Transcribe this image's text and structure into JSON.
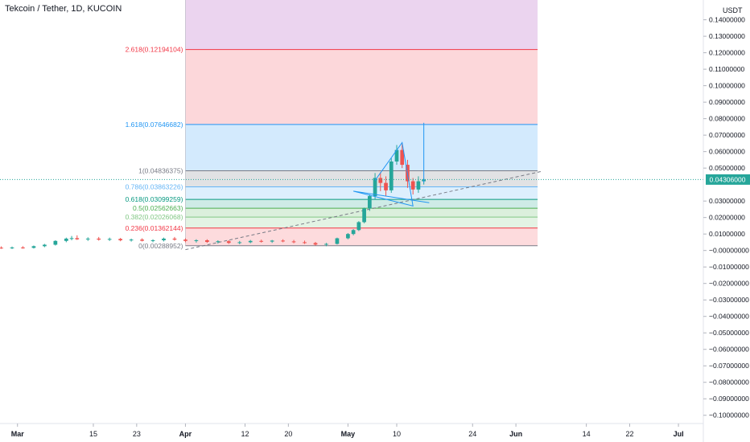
{
  "header": {
    "title": "Tekcoin / Tether, 1D, KUCOIN",
    "currency": "USDT"
  },
  "price_badge": "0.04306000",
  "colors": {
    "up": "#26a69a",
    "down": "#ef5350",
    "pattern": "#2196f3",
    "trend": "#787b86"
  },
  "chart_data": {
    "type": "candlestick",
    "title": "Tekcoin / Tether, 1D, KUCOIN",
    "ylabel": "USDT",
    "ylim": [
      -0.105,
      0.152
    ],
    "xlim": [
      "2021-02-28",
      "2021-07-05"
    ],
    "x_ticks": [
      {
        "date": "2021-03-01",
        "label": "Mar",
        "bold": true
      },
      {
        "date": "2021-03-15",
        "label": "15",
        "bold": false
      },
      {
        "date": "2021-03-23",
        "label": "23",
        "bold": false
      },
      {
        "date": "2021-04-01",
        "label": "Apr",
        "bold": true
      },
      {
        "date": "2021-04-12",
        "label": "12",
        "bold": false
      },
      {
        "date": "2021-04-20",
        "label": "20",
        "bold": false
      },
      {
        "date": "2021-05-01",
        "label": "May",
        "bold": true
      },
      {
        "date": "2021-05-10",
        "label": "10",
        "bold": false
      },
      {
        "date": "2021-05-24",
        "label": "24",
        "bold": false
      },
      {
        "date": "2021-06-01",
        "label": "Jun",
        "bold": true
      },
      {
        "date": "2021-06-14",
        "label": "14",
        "bold": false
      },
      {
        "date": "2021-06-22",
        "label": "22",
        "bold": false
      },
      {
        "date": "2021-07-01",
        "label": "Jul",
        "bold": true
      }
    ],
    "y_ticks": [
      "0.14000000",
      "0.13000000",
      "0.12000000",
      "0.11000000",
      "0.10000000",
      "0.09000000",
      "0.08000000",
      "0.07000000",
      "0.06000000",
      "0.05000000",
      "0.03000000",
      "0.02000000",
      "0.01000000",
      "−0.00000000",
      "−0.01000000",
      "−0.02000000",
      "−0.03000000",
      "−0.04000000",
      "−0.05000000",
      "−0.06000000",
      "−0.07000000",
      "−0.08000000",
      "−0.09000000",
      "−0.10000000"
    ],
    "y_tick_values": [
      0.14,
      0.13,
      0.12,
      0.11,
      0.1,
      0.09,
      0.08,
      0.07,
      0.06,
      0.05,
      0.03,
      0.02,
      0.01,
      0,
      -0.01,
      -0.02,
      -0.03,
      -0.04,
      -0.05,
      -0.06,
      -0.07,
      -0.08,
      -0.09,
      -0.1
    ],
    "last_price": 0.04306,
    "fibonacci": {
      "start_date": "2021-04-01",
      "end_date": "2021-06-05",
      "levels": [
        {
          "ratio": "0",
          "label": "0(0.00288952)",
          "price": 0.00288952,
          "color": "#787b86",
          "fill": null
        },
        {
          "ratio": "0.236",
          "label": "0.236(0.01362144)",
          "price": 0.01362144,
          "color": "#f23645",
          "fill": "rgba(242,54,69,0.18)"
        },
        {
          "ratio": "0.382",
          "label": "0.382(0.02026068)",
          "price": 0.02026068,
          "color": "#81c784",
          "fill": "rgba(129,199,132,0.22)"
        },
        {
          "ratio": "0.5",
          "label": "0.5(0.02562663)",
          "price": 0.02562663,
          "color": "#4caf50",
          "fill": "rgba(76,175,80,0.20)"
        },
        {
          "ratio": "0.618",
          "label": "0.618(0.03099259)",
          "price": 0.03099259,
          "color": "#089981",
          "fill": "rgba(8,153,129,0.20)"
        },
        {
          "ratio": "0.786",
          "label": "0.786(0.03863226)",
          "price": 0.03863226,
          "color": "#64b5f6",
          "fill": "rgba(100,181,246,0.22)"
        },
        {
          "ratio": "1",
          "label": "1(0.04836375)",
          "price": 0.04836375,
          "color": "#787b86",
          "fill": "rgba(120,123,134,0.22)"
        },
        {
          "ratio": "1.618",
          "label": "1.618(0.07646682)",
          "price": 0.07646682,
          "color": "#2196f3",
          "fill": "rgba(33,150,243,0.20)"
        },
        {
          "ratio": "2.618",
          "label": "2.618(0.12194104)",
          "price": 0.12194104,
          "color": "#f23645",
          "fill": "rgba(242,54,69,0.20)"
        },
        {
          "ratio": "top",
          "label": "",
          "price": 0.152,
          "color": "#9c27b0",
          "fill": "rgba(156,39,176,0.20)"
        }
      ]
    },
    "candles": [
      {
        "d": "2021-02-20",
        "o": 0.0015,
        "h": 0.0025,
        "l": 0.0008,
        "c": 0.0016
      },
      {
        "d": "2021-02-22",
        "o": 0.0016,
        "h": 0.0024,
        "l": 0.0009,
        "c": 0.0014
      },
      {
        "d": "2021-02-24",
        "o": 0.0014,
        "h": 0.0022,
        "l": 0.0008,
        "c": 0.0017
      },
      {
        "d": "2021-02-26",
        "o": 0.0017,
        "h": 0.0025,
        "l": 0.001,
        "c": 0.0015
      },
      {
        "d": "2021-02-28",
        "o": 0.0015,
        "h": 0.0024,
        "l": 0.0009,
        "c": 0.0018
      },
      {
        "d": "2021-03-02",
        "o": 0.0018,
        "h": 0.0026,
        "l": 0.0011,
        "c": 0.0016
      },
      {
        "d": "2021-03-04",
        "o": 0.0016,
        "h": 0.003,
        "l": 0.0012,
        "c": 0.0026
      },
      {
        "d": "2021-03-06",
        "o": 0.0026,
        "h": 0.004,
        "l": 0.002,
        "c": 0.0035
      },
      {
        "d": "2021-03-08",
        "o": 0.0035,
        "h": 0.0062,
        "l": 0.003,
        "c": 0.0058
      },
      {
        "d": "2021-03-10",
        "o": 0.0058,
        "h": 0.0078,
        "l": 0.005,
        "c": 0.0072
      },
      {
        "d": "2021-03-11",
        "o": 0.0072,
        "h": 0.0088,
        "l": 0.0062,
        "c": 0.0075
      },
      {
        "d": "2021-03-12",
        "o": 0.0075,
        "h": 0.0092,
        "l": 0.0064,
        "c": 0.0068
      },
      {
        "d": "2021-03-14",
        "o": 0.0068,
        "h": 0.008,
        "l": 0.0058,
        "c": 0.0072
      },
      {
        "d": "2021-03-16",
        "o": 0.0072,
        "h": 0.0082,
        "l": 0.006,
        "c": 0.0066
      },
      {
        "d": "2021-03-18",
        "o": 0.0066,
        "h": 0.0078,
        "l": 0.0058,
        "c": 0.007
      },
      {
        "d": "2021-03-20",
        "o": 0.007,
        "h": 0.0076,
        "l": 0.0056,
        "c": 0.0062
      },
      {
        "d": "2021-03-22",
        "o": 0.0062,
        "h": 0.0072,
        "l": 0.0054,
        "c": 0.0066
      },
      {
        "d": "2021-03-24",
        "o": 0.0066,
        "h": 0.0074,
        "l": 0.0055,
        "c": 0.0059
      },
      {
        "d": "2021-03-26",
        "o": 0.0059,
        "h": 0.0068,
        "l": 0.005,
        "c": 0.0062
      },
      {
        "d": "2021-03-28",
        "o": 0.0062,
        "h": 0.0078,
        "l": 0.0055,
        "c": 0.0072
      },
      {
        "d": "2021-03-30",
        "o": 0.0072,
        "h": 0.0082,
        "l": 0.006,
        "c": 0.0066
      },
      {
        "d": "2021-04-01",
        "o": 0.0066,
        "h": 0.0074,
        "l": 0.005,
        "c": 0.0058
      },
      {
        "d": "2021-04-03",
        "o": 0.0058,
        "h": 0.0068,
        "l": 0.0048,
        "c": 0.0062
      },
      {
        "d": "2021-04-05",
        "o": 0.0062,
        "h": 0.0068,
        "l": 0.0046,
        "c": 0.0052
      },
      {
        "d": "2021-04-07",
        "o": 0.0052,
        "h": 0.0062,
        "l": 0.0042,
        "c": 0.0056
      },
      {
        "d": "2021-04-09",
        "o": 0.0056,
        "h": 0.0062,
        "l": 0.004,
        "c": 0.0046
      },
      {
        "d": "2021-04-11",
        "o": 0.0046,
        "h": 0.0058,
        "l": 0.0038,
        "c": 0.005
      },
      {
        "d": "2021-04-13",
        "o": 0.005,
        "h": 0.0064,
        "l": 0.0044,
        "c": 0.0058
      },
      {
        "d": "2021-04-15",
        "o": 0.0058,
        "h": 0.0066,
        "l": 0.0048,
        "c": 0.0054
      },
      {
        "d": "2021-04-17",
        "o": 0.0054,
        "h": 0.0064,
        "l": 0.0046,
        "c": 0.006
      },
      {
        "d": "2021-04-19",
        "o": 0.006,
        "h": 0.0068,
        "l": 0.005,
        "c": 0.0055
      },
      {
        "d": "2021-04-21",
        "o": 0.0055,
        "h": 0.0064,
        "l": 0.0044,
        "c": 0.005
      },
      {
        "d": "2021-04-23",
        "o": 0.005,
        "h": 0.006,
        "l": 0.004,
        "c": 0.0045
      },
      {
        "d": "2021-04-25",
        "o": 0.0045,
        "h": 0.0052,
        "l": 0.003,
        "c": 0.0036
      },
      {
        "d": "2021-04-27",
        "o": 0.0036,
        "h": 0.0046,
        "l": 0.0026,
        "c": 0.004
      },
      {
        "d": "2021-04-29",
        "o": 0.004,
        "h": 0.0078,
        "l": 0.0036,
        "c": 0.0074
      },
      {
        "d": "2021-05-01",
        "o": 0.0074,
        "h": 0.0106,
        "l": 0.0068,
        "c": 0.01
      },
      {
        "d": "2021-05-02",
        "o": 0.01,
        "h": 0.013,
        "l": 0.0092,
        "c": 0.0124
      },
      {
        "d": "2021-05-03",
        "o": 0.0124,
        "h": 0.0178,
        "l": 0.0118,
        "c": 0.0172
      },
      {
        "d": "2021-05-04",
        "o": 0.0172,
        "h": 0.026,
        "l": 0.0165,
        "c": 0.0255
      },
      {
        "d": "2021-05-05",
        "o": 0.0255,
        "h": 0.034,
        "l": 0.024,
        "c": 0.033
      },
      {
        "d": "2021-05-06",
        "o": 0.033,
        "h": 0.047,
        "l": 0.031,
        "c": 0.044
      },
      {
        "d": "2021-05-07",
        "o": 0.044,
        "h": 0.0475,
        "l": 0.036,
        "c": 0.041
      },
      {
        "d": "2021-05-08",
        "o": 0.041,
        "h": 0.045,
        "l": 0.033,
        "c": 0.0365
      },
      {
        "d": "2021-05-09",
        "o": 0.0365,
        "h": 0.056,
        "l": 0.035,
        "c": 0.054
      },
      {
        "d": "2021-05-10",
        "o": 0.054,
        "h": 0.064,
        "l": 0.052,
        "c": 0.061
      },
      {
        "d": "2021-05-11",
        "o": 0.061,
        "h": 0.065,
        "l": 0.05,
        "c": 0.052
      },
      {
        "d": "2021-05-12",
        "o": 0.052,
        "h": 0.055,
        "l": 0.038,
        "c": 0.042
      },
      {
        "d": "2021-05-13",
        "o": 0.042,
        "h": 0.044,
        "l": 0.034,
        "c": 0.037
      },
      {
        "d": "2021-05-14",
        "o": 0.037,
        "h": 0.045,
        "l": 0.035,
        "c": 0.042
      },
      {
        "d": "2021-05-15",
        "o": 0.042,
        "h": 0.044,
        "l": 0.04,
        "c": 0.0431
      }
    ],
    "pattern": {
      "points": [
        {
          "d": "2021-05-06",
          "p": 0.0425
        },
        {
          "d": "2021-05-11",
          "p": 0.0655
        },
        {
          "d": "2021-05-13",
          "p": 0.027
        },
        {
          "d": "2021-05-02",
          "p": 0.036
        },
        {
          "d": "2021-05-16",
          "p": 0.029
        }
      ],
      "target_line": {
        "d": "2021-05-15",
        "p_from": 0.041,
        "p_to": 0.0775
      }
    },
    "trend_line": {
      "from": {
        "d": "2021-04-01",
        "p": 0.0005
      },
      "to": {
        "d": "2021-06-06",
        "p": 0.0482
      }
    }
  }
}
